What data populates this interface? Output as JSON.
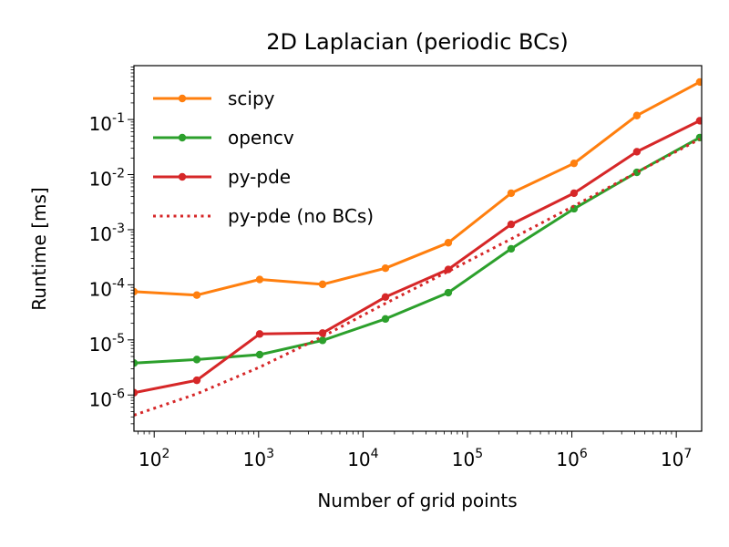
{
  "chart_data": {
    "type": "line",
    "title": "2D Laplacian (periodic BCs)",
    "xlabel": "Number of grid points",
    "ylabel": "Runtime [ms]",
    "xscale": "log",
    "yscale": "log",
    "xlim": [
      64,
      17500000
    ],
    "ylim": [
      2.2e-07,
      0.95
    ],
    "x_ticks": [
      {
        "value": 100,
        "base": "10",
        "exp": "2"
      },
      {
        "value": 1000,
        "base": "10",
        "exp": "3"
      },
      {
        "value": 10000,
        "base": "10",
        "exp": "4"
      },
      {
        "value": 100000,
        "base": "10",
        "exp": "5"
      },
      {
        "value": 1000000,
        "base": "10",
        "exp": "6"
      },
      {
        "value": 10000000,
        "base": "10",
        "exp": "7"
      }
    ],
    "y_ticks": [
      {
        "value": 1e-06,
        "base": "10",
        "exp": "-6"
      },
      {
        "value": 1e-05,
        "base": "10",
        "exp": "-5"
      },
      {
        "value": 0.0001,
        "base": "10",
        "exp": "-4"
      },
      {
        "value": 0.001,
        "base": "10",
        "exp": "-3"
      },
      {
        "value": 0.01,
        "base": "10",
        "exp": "-2"
      },
      {
        "value": 0.1,
        "base": "10",
        "exp": "-1"
      }
    ],
    "grid": false,
    "legend_position": "top-left",
    "x": [
      64,
      256,
      1024,
      4096,
      16384,
      65536,
      262144,
      1048576,
      4194304,
      16777216
    ],
    "series": [
      {
        "name": "scipy",
        "color": "#ff7f0e",
        "style": "solid",
        "marker": true,
        "values": [
          7.5e-05,
          6.5e-05,
          0.000125,
          0.000102,
          0.0002,
          0.00058,
          0.0046,
          0.016,
          0.118,
          0.48
        ]
      },
      {
        "name": "opencv",
        "color": "#2ca02c",
        "style": "solid",
        "marker": true,
        "values": [
          3.8e-06,
          4.4e-06,
          5.4e-06,
          9.8e-06,
          2.4e-05,
          7.2e-05,
          0.00045,
          0.0024,
          0.011,
          0.047
        ]
      },
      {
        "name": "py-pde",
        "color": "#d62728",
        "style": "solid",
        "marker": true,
        "values": [
          1.1e-06,
          1.85e-06,
          1.28e-05,
          1.33e-05,
          6e-05,
          0.00019,
          0.00125,
          0.0046,
          0.026,
          0.095
        ]
      },
      {
        "name": "py-pde (no BCs)",
        "color": "#d62728",
        "style": "dotted",
        "marker": false,
        "values": [
          4.3e-07,
          1.05e-06,
          3.2e-06,
          1.15e-05,
          4.6e-05,
          0.000175,
          0.00068,
          0.0027,
          0.011,
          0.044
        ]
      }
    ]
  }
}
